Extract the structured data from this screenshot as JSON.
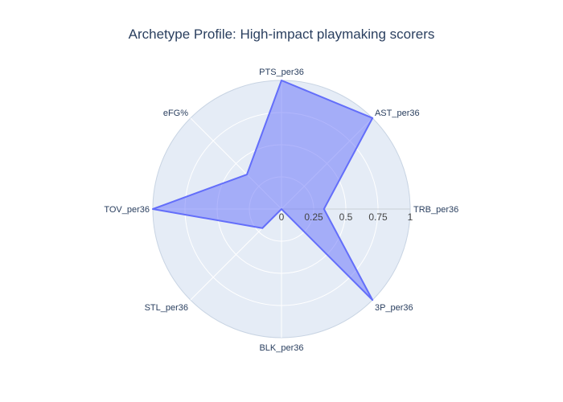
{
  "chart_data": {
    "type": "radar",
    "title": "Archetype Profile: High-impact playmaking scorers",
    "axes": [
      "PTS_per36",
      "AST_per36",
      "TRB_per36",
      "3P_per36",
      "BLK_per36",
      "STL_per36",
      "TOV_per36",
      "eFG%"
    ],
    "values": [
      1.0,
      1.0,
      0.33,
      1.0,
      0.0,
      0.21,
      1.0,
      0.38
    ],
    "radial_range": [
      0,
      1
    ],
    "radial_ticks": [
      "0",
      "0.25",
      "0.5",
      "0.75",
      "1"
    ],
    "radial_tick_values": [
      0,
      0.25,
      0.5,
      0.75,
      1
    ],
    "grid": true,
    "legend": "none",
    "colors": {
      "fill": "#636efa",
      "line": "#636efa",
      "background": "#e5ecf6",
      "grid": "#ffffff",
      "text": "#2a3f5f"
    }
  }
}
